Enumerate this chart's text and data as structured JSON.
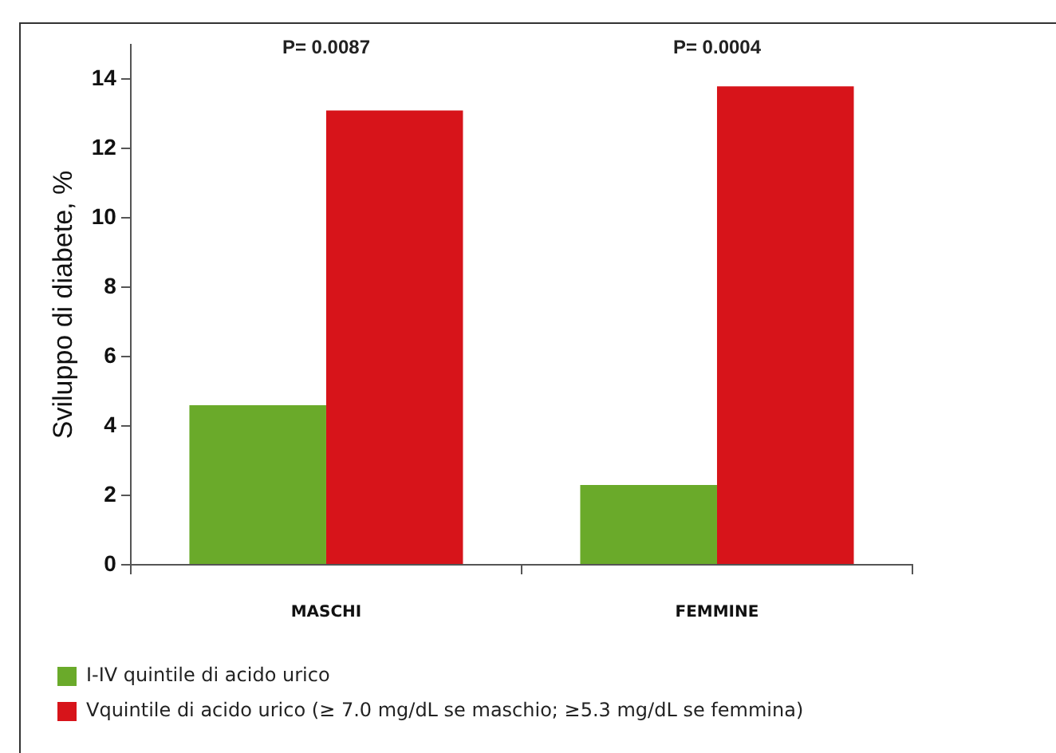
{
  "chart_data": {
    "type": "bar",
    "ylabel": "Sviluppo di diabete, %",
    "categories": [
      "MASCHI",
      "FEMMINE"
    ],
    "series": [
      {
        "name": "I-IV quintile di acido urico",
        "color": "#6aaa2a",
        "values": [
          4.6,
          2.3
        ]
      },
      {
        "name": "Vquintile di acido urico (≥ 7.0 mg/dL se maschio; ≥5.3 mg/dL se femmina)",
        "color": "#d7141a",
        "values": [
          13.1,
          13.8
        ]
      }
    ],
    "ylim": [
      0,
      15
    ],
    "yticks": [
      0,
      2,
      4,
      6,
      8,
      10,
      12,
      14
    ],
    "grid": false,
    "legend": "bottom left",
    "annotations": [
      "P= 0.0087",
      "P= 0.0004"
    ]
  }
}
